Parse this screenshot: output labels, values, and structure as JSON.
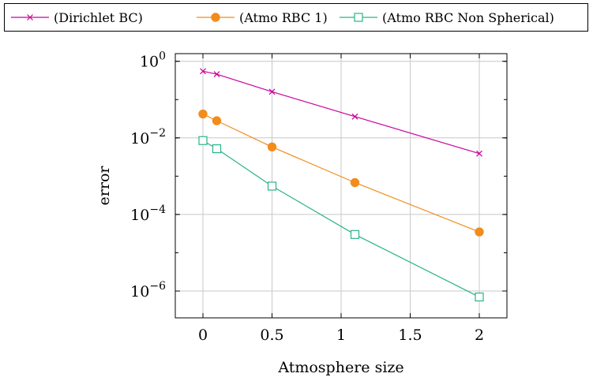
{
  "chart_data": {
    "type": "line",
    "title": "",
    "xlabel": "Atmosphere size",
    "ylabel": "error",
    "xlim": [
      -0.2,
      2.2
    ],
    "ylim_log10": [
      -6.7,
      0.2
    ],
    "yscale": "log",
    "grid": true,
    "legend_position": "top",
    "x_ticks": [
      "0",
      "0.5",
      "1",
      "1.5",
      "2"
    ],
    "y_ticks": [
      {
        "base": "10",
        "exp": "0"
      },
      {
        "base": "10",
        "exp": "−2"
      },
      {
        "base": "10",
        "exp": "−4"
      },
      {
        "base": "10",
        "exp": "−6"
      }
    ],
    "series": [
      {
        "name": "(Dirichlet BC)",
        "color": "#cc0099",
        "marker": "x",
        "x": [
          0,
          0.1,
          0.5,
          1.1,
          2
        ],
        "y": [
          0.55,
          0.46,
          0.16,
          0.036,
          0.0039
        ]
      },
      {
        "name": "(Atmo RBC 1)",
        "color": "#f28c1c",
        "marker": "filled-circle",
        "x": [
          0,
          0.1,
          0.5,
          1.1,
          2
        ],
        "y": [
          0.042,
          0.028,
          0.0058,
          0.00068,
          3.5e-05
        ]
      },
      {
        "name": "(Atmo RBC Non Spherical)",
        "color": "#2ab38a",
        "marker": "open-square",
        "x": [
          0,
          0.1,
          0.5,
          1.1,
          2
        ],
        "y": [
          0.0085,
          0.0052,
          0.00055,
          3e-05,
          7e-07
        ]
      }
    ]
  }
}
